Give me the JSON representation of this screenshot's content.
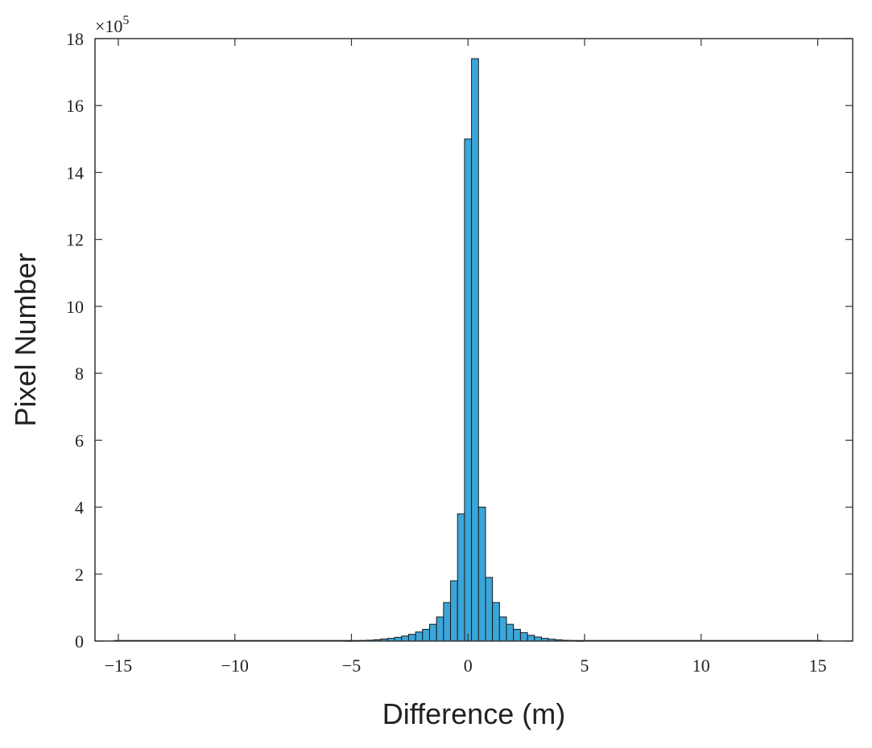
{
  "chart_data": {
    "type": "bar",
    "title": "",
    "xlabel": "Difference (m)",
    "ylabel": "Pixel Number",
    "y_multiplier_label": "×10",
    "y_multiplier_exponent": "5",
    "xlim": [
      -16.0,
      16.5
    ],
    "ylim": [
      0,
      18
    ],
    "x_ticks": [
      -15,
      -10,
      -5,
      0,
      5,
      10,
      15
    ],
    "x_tick_labels": [
      "−15",
      "−10",
      "−5",
      "0",
      "5",
      "10",
      "15"
    ],
    "y_ticks": [
      0,
      2,
      4,
      6,
      8,
      10,
      12,
      14,
      16,
      18
    ],
    "y_tick_labels": [
      "0",
      "2",
      "4",
      "6",
      "8",
      "10",
      "12",
      "14",
      "16",
      "18"
    ],
    "y_unit": "×10^5 pixels",
    "bin_width": 0.3,
    "bins": [
      {
        "x": -5.1,
        "y": 0.005
      },
      {
        "x": -4.8,
        "y": 0.01
      },
      {
        "x": -4.5,
        "y": 0.015
      },
      {
        "x": -4.2,
        "y": 0.025
      },
      {
        "x": -3.9,
        "y": 0.04
      },
      {
        "x": -3.6,
        "y": 0.06
      },
      {
        "x": -3.3,
        "y": 0.08
      },
      {
        "x": -3.0,
        "y": 0.11
      },
      {
        "x": -2.7,
        "y": 0.15
      },
      {
        "x": -2.4,
        "y": 0.2
      },
      {
        "x": -2.1,
        "y": 0.27
      },
      {
        "x": -1.8,
        "y": 0.35
      },
      {
        "x": -1.5,
        "y": 0.5
      },
      {
        "x": -1.2,
        "y": 0.72
      },
      {
        "x": -0.9,
        "y": 1.15
      },
      {
        "x": -0.6,
        "y": 1.8
      },
      {
        "x": -0.3,
        "y": 3.8
      },
      {
        "x": 0.0,
        "y": 15.0
      },
      {
        "x": 0.3,
        "y": 17.4
      },
      {
        "x": 0.6,
        "y": 4.0
      },
      {
        "x": 0.9,
        "y": 1.9
      },
      {
        "x": 1.2,
        "y": 1.15
      },
      {
        "x": 1.5,
        "y": 0.72
      },
      {
        "x": 1.8,
        "y": 0.5
      },
      {
        "x": 2.1,
        "y": 0.35
      },
      {
        "x": 2.4,
        "y": 0.25
      },
      {
        "x": 2.7,
        "y": 0.17
      },
      {
        "x": 3.0,
        "y": 0.12
      },
      {
        "x": 3.3,
        "y": 0.08
      },
      {
        "x": 3.6,
        "y": 0.055
      },
      {
        "x": 3.9,
        "y": 0.035
      },
      {
        "x": 4.2,
        "y": 0.02
      },
      {
        "x": 4.5,
        "y": 0.012
      },
      {
        "x": 4.8,
        "y": 0.006
      }
    ],
    "bar_color": "#3aa6d9",
    "edge_color": "#1a1a1a",
    "grid": false,
    "box": true
  }
}
